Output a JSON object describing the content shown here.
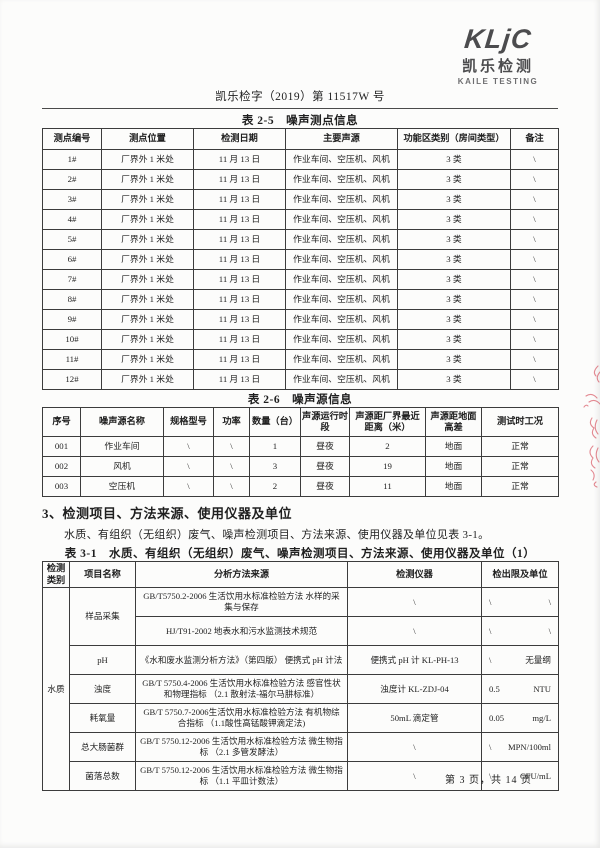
{
  "logo": {
    "acronym": "KLjC",
    "name_cn": "凯乐检测",
    "name_en": "KAILE TESTING"
  },
  "doc_number": "凯乐检字（2019）第 11517W 号",
  "table_2_5": {
    "title": "表 2-5　噪声测点信息",
    "headers": [
      "测点编号",
      "测点位置",
      "检测日期",
      "主要声源",
      "功能区类别（房间类型）",
      "备注"
    ],
    "rows": [
      [
        "1#",
        "厂界外 1 米处",
        "11 月 13 日",
        "作业车间、空压机、风机",
        "3 类",
        "\\"
      ],
      [
        "2#",
        "厂界外 1 米处",
        "11 月 13 日",
        "作业车间、空压机、风机",
        "3 类",
        "\\"
      ],
      [
        "3#",
        "厂界外 1 米处",
        "11 月 13 日",
        "作业车间、空压机、风机",
        "3 类",
        "\\"
      ],
      [
        "4#",
        "厂界外 1 米处",
        "11 月 13 日",
        "作业车间、空压机、风机",
        "3 类",
        "\\"
      ],
      [
        "5#",
        "厂界外 1 米处",
        "11 月 13 日",
        "作业车间、空压机、风机",
        "3 类",
        "\\"
      ],
      [
        "6#",
        "厂界外 1 米处",
        "11 月 13 日",
        "作业车间、空压机、风机",
        "3 类",
        "\\"
      ],
      [
        "7#",
        "厂界外 1 米处",
        "11 月 13 日",
        "作业车间、空压机、风机",
        "3 类",
        "\\"
      ],
      [
        "8#",
        "厂界外 1 米处",
        "11 月 13 日",
        "作业车间、空压机、风机",
        "3 类",
        "\\"
      ],
      [
        "9#",
        "厂界外 1 米处",
        "11 月 13 日",
        "作业车间、空压机、风机",
        "3 类",
        "\\"
      ],
      [
        "10#",
        "厂界外 1 米处",
        "11 月 13 日",
        "作业车间、空压机、风机",
        "3 类",
        "\\"
      ],
      [
        "11#",
        "厂界外 1 米处",
        "11 月 13 日",
        "作业车间、空压机、风机",
        "3 类",
        "\\"
      ],
      [
        "12#",
        "厂界外 1 米处",
        "11 月 13 日",
        "作业车间、空压机、风机",
        "3 类",
        "\\"
      ]
    ]
  },
  "table_2_6": {
    "title": "表 2-6　噪声源信息",
    "headers": [
      "序号",
      "噪声源名称",
      "规格型号",
      "功率",
      "数量（台）",
      "声源运行时段",
      "声源距厂界最近距离（米）",
      "声源距地面高差",
      "测试时工况"
    ],
    "rows": [
      [
        "001",
        "作业车间",
        "\\",
        "\\",
        "1",
        "昼夜",
        "2",
        "地面",
        "正常"
      ],
      [
        "002",
        "风机",
        "\\",
        "\\",
        "3",
        "昼夜",
        "19",
        "地面",
        "正常"
      ],
      [
        "003",
        "空压机",
        "\\",
        "\\",
        "2",
        "昼夜",
        "11",
        "地面",
        "正常"
      ]
    ]
  },
  "section3": {
    "heading": "3、检测项目、方法来源、使用仪器及单位",
    "paragraph": "水质、有组织（无组织）废气、噪声检测项目、方法来源、使用仪器及单位见表 3-1。"
  },
  "table_3_1": {
    "title": "表 3-1　水质、有组织（无组织）废气、噪声检测项目、方法来源、使用仪器及单位（1）",
    "headers": [
      "检测类别",
      "项目名称",
      "分析方法来源",
      "检测仪器",
      "检出限及单位"
    ],
    "category": "水质",
    "rows": [
      {
        "project": "样品采集",
        "project_rowspan": 2,
        "method": "GB/T5750.2-2006 生活饮用水标准检验方法 水样的采集与保存",
        "instrument": "\\",
        "limit": "\\",
        "unit": "\\"
      },
      {
        "method": "HJ/T91-2002 地表水和污水监测技术规范",
        "instrument": "\\",
        "limit": "\\",
        "unit": "\\"
      },
      {
        "project": "pH",
        "method": "《水和废水监测分析方法》（第四版） 便携式 pH 计法",
        "instrument": "便携式 pH 计 KL-PH-13",
        "limit": "\\",
        "unit": "无量纲"
      },
      {
        "project": "浊度",
        "method": "GB/T 5750.4-2006 生活饮用水标准检验方法 感官性状和物理指标 （2.1 散射法-福尔马肼标准）",
        "instrument": "浊度计 KL-ZDJ-04",
        "limit": "0.5",
        "unit": "NTU"
      },
      {
        "project": "耗氧量",
        "method": "GB/T 5750.7-2006生活饮用水标准检验方法 有机物综合指标 （1.1酸性高锰酸钾滴定法)",
        "instrument": "50mL 滴定管",
        "limit": "0.05",
        "unit": "mg/L"
      },
      {
        "project": "总大肠菌群",
        "method": "GB/T 5750.12-2006 生活饮用水标准检验方法 微生物指标 （2.1 多管发酵法）",
        "instrument": "\\",
        "limit": "\\",
        "unit": "MPN/100ml"
      },
      {
        "project": "菌落总数",
        "method": "GB/T 5750.12-2006 生活饮用水标准检验方法 微生物指标 （1.1 平皿计数法）",
        "instrument": "\\",
        "limit": "\\",
        "unit": "CFU/mL"
      }
    ]
  },
  "footer": {
    "page_text": "第 3 页，共 14 页"
  }
}
